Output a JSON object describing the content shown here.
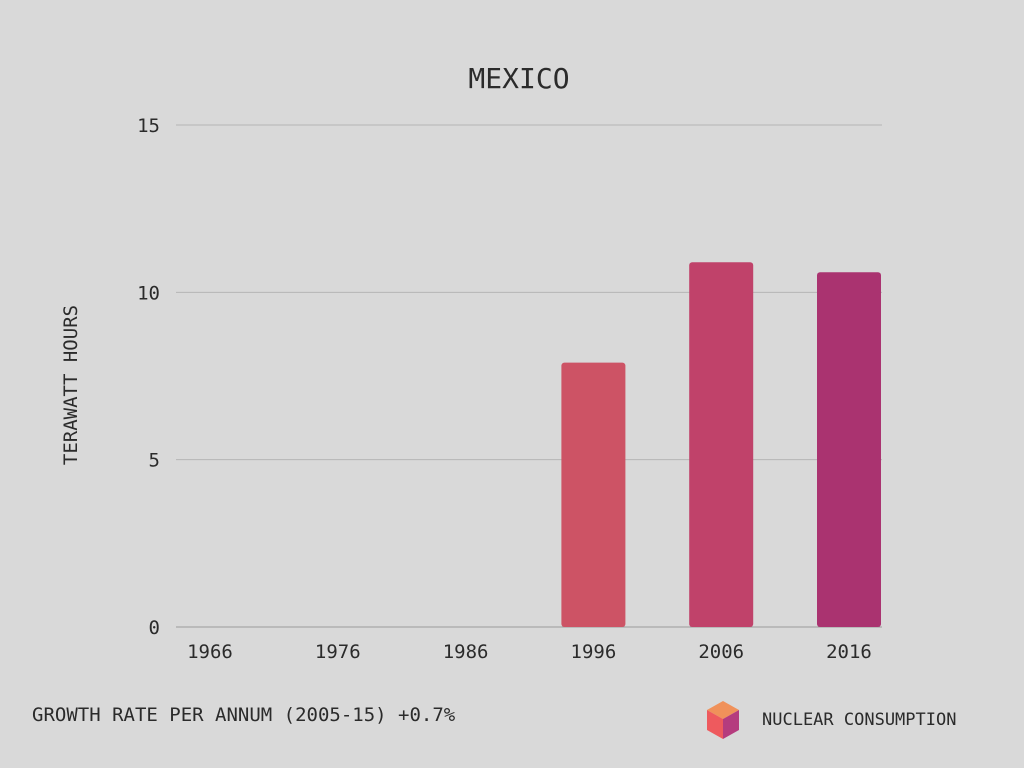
{
  "colors": {
    "background": "#d9d9d9",
    "bar_1996": "#cd5365",
    "bar_2006": "#c0426a",
    "bar_2016": "#aa3370",
    "logo_top": "#f0915a",
    "logo_left": "#ee5a5e",
    "logo_right": "#b53c7e"
  },
  "chart_data": {
    "type": "bar",
    "title": "MEXICO",
    "ylabel": "TERAWATT HOURS",
    "xlabel": "",
    "categories": [
      "1966",
      "1976",
      "1986",
      "1996",
      "2006",
      "2016"
    ],
    "values": [
      0,
      0,
      0,
      7.9,
      10.9,
      10.6
    ],
    "ylim": [
      0,
      15
    ],
    "yticks": [
      "0",
      "5",
      "10",
      "15"
    ],
    "ytick_values": [
      0,
      5,
      10,
      15
    ],
    "grid": true
  },
  "footer": {
    "growth_text": "GROWTH RATE PER ANNUM (2005-15) +0.7%",
    "brand_label": "NUCLEAR CONSUMPTION",
    "brand_icon": "cube-logo-icon"
  }
}
